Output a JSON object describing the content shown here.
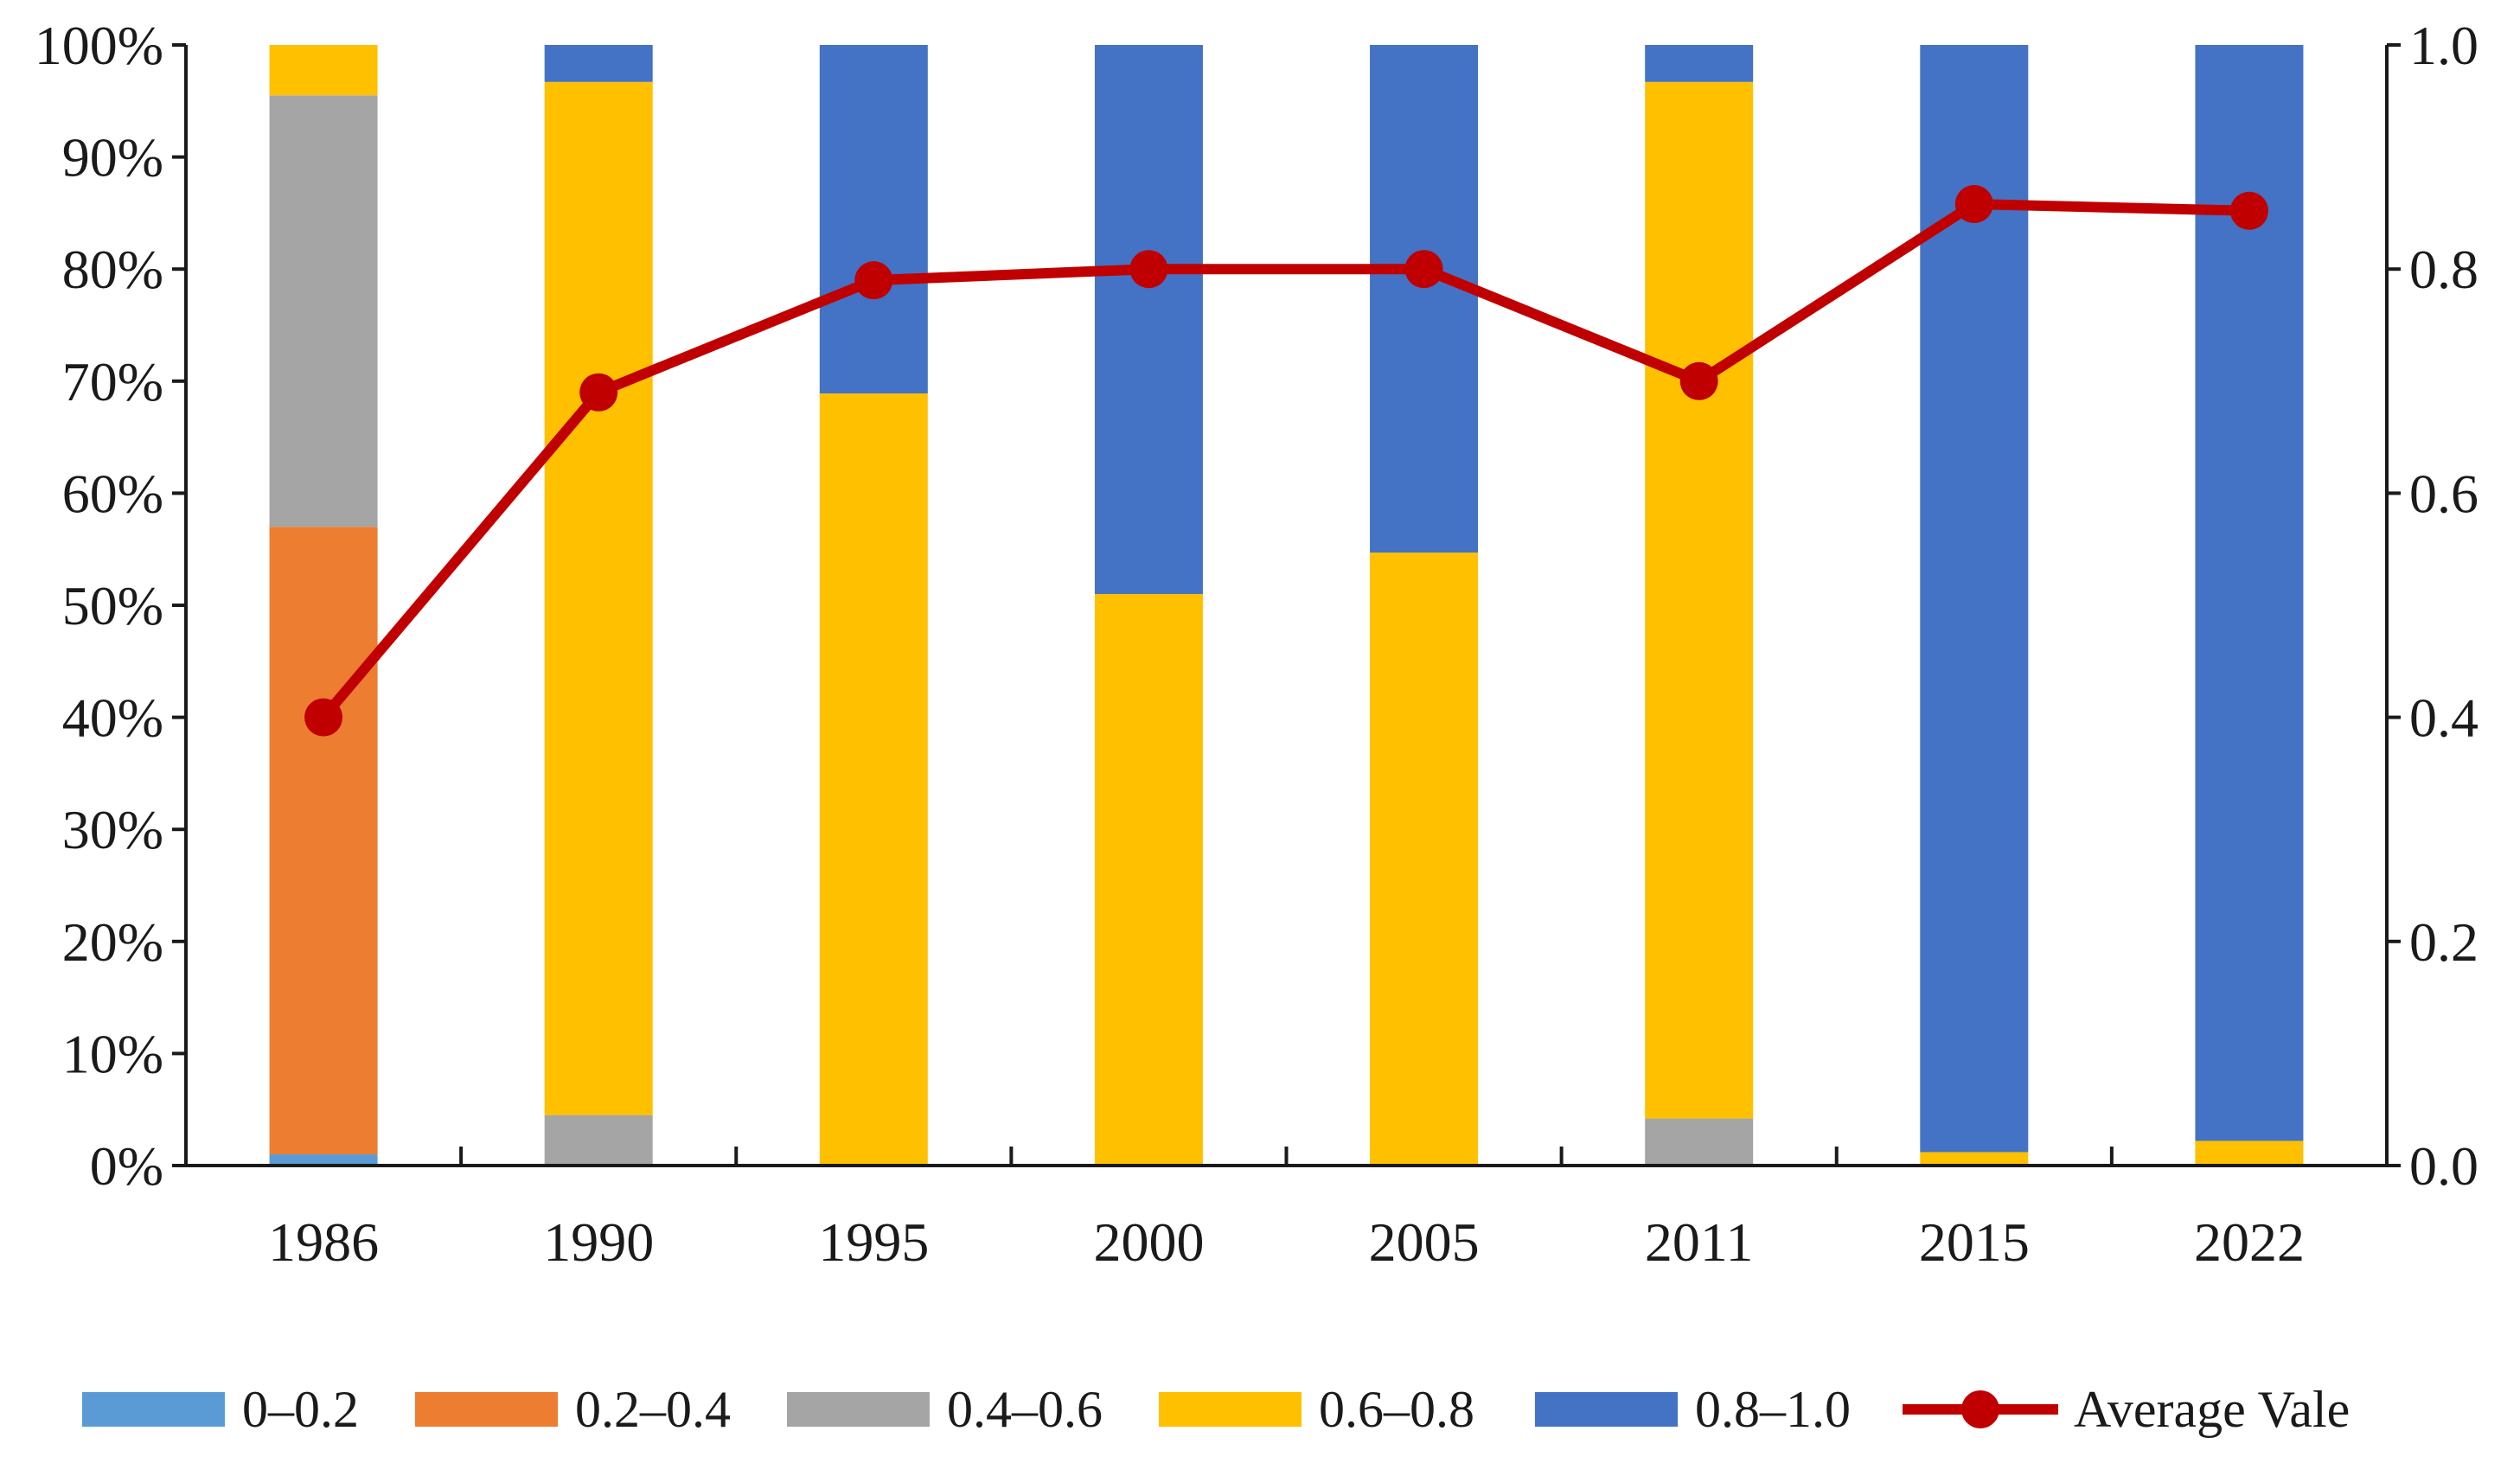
{
  "chart_data": {
    "type": "bar",
    "stacked": true,
    "categories": [
      "1986",
      "1990",
      "1995",
      "2000",
      "2005",
      "2011",
      "2015",
      "2022"
    ],
    "left_axis": {
      "ticks": [
        "0%",
        "10%",
        "20%",
        "30%",
        "40%",
        "50%",
        "60%",
        "70%",
        "80%",
        "90%",
        "100%"
      ],
      "ylim": [
        0,
        100
      ]
    },
    "right_axis": {
      "ticks": [
        "0.0",
        "0.2",
        "0.4",
        "0.6",
        "0.8",
        "1.0"
      ],
      "ylim": [
        0,
        1
      ]
    },
    "series": [
      {
        "name": "0–0.2",
        "color": "#5b9bd5",
        "values": [
          1,
          0,
          0,
          0,
          0,
          0,
          0,
          0
        ]
      },
      {
        "name": "0.2–0.4",
        "color": "#ed7d31",
        "values": [
          56,
          0,
          0,
          0,
          0,
          0,
          0,
          0
        ]
      },
      {
        "name": "0.4–0.6",
        "color": "#a5a5a5",
        "values": [
          38.5,
          4.5,
          0,
          0,
          0,
          4.2,
          0,
          0
        ]
      },
      {
        "name": "0.6–0.8",
        "color": "#ffc000",
        "values": [
          4.5,
          92.2,
          68.9,
          51,
          54.7,
          92.5,
          1.2,
          2.2
        ]
      },
      {
        "name": "0.8–1.0",
        "color": "#4472c4",
        "values": [
          0,
          3.3,
          31.1,
          49,
          45.3,
          3.3,
          98.8,
          97.8
        ]
      }
    ],
    "line": {
      "name": "Average Vale",
      "color": "#c00000",
      "values": [
        0.4,
        0.69,
        0.79,
        0.8,
        0.8,
        0.7,
        0.858,
        0.852
      ]
    },
    "legend_position": "bottom"
  }
}
